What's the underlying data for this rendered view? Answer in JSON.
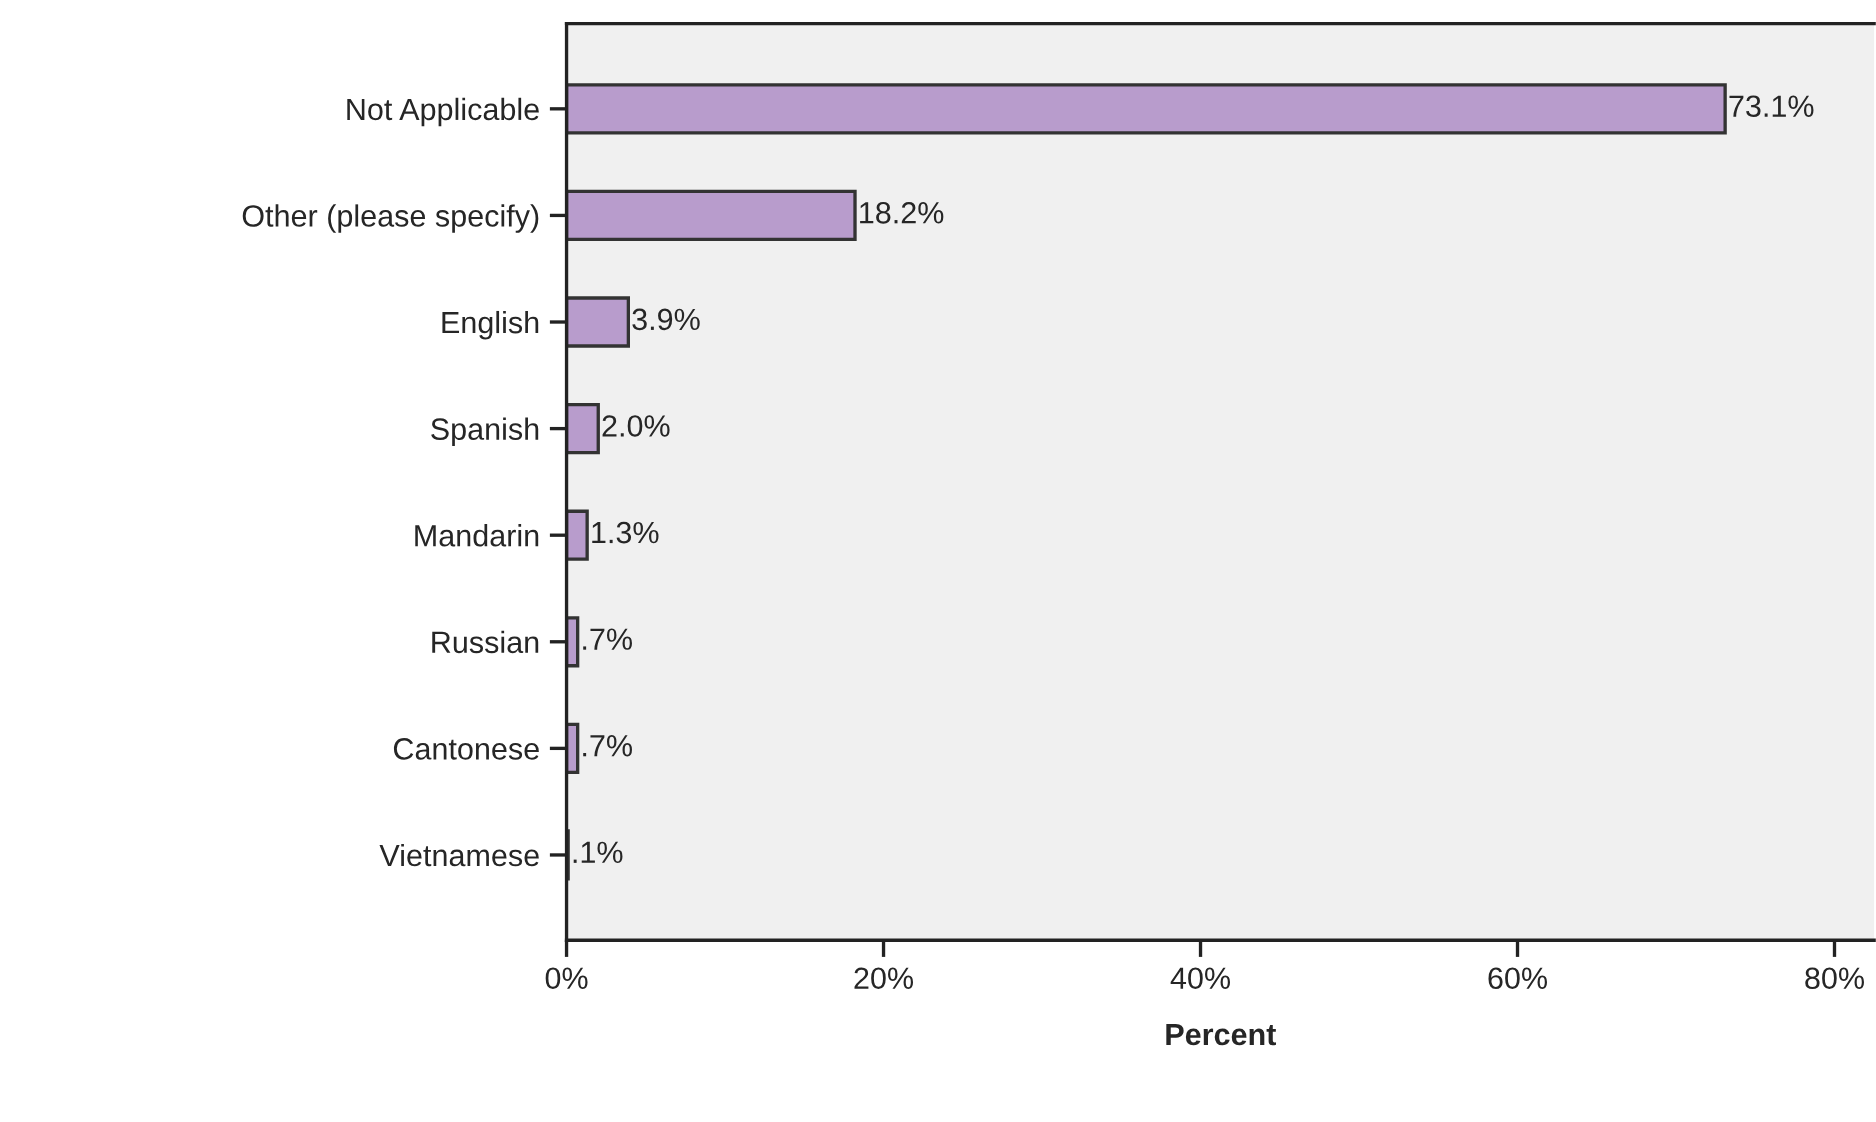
{
  "chart_data": {
    "type": "bar",
    "orientation": "horizontal",
    "xlabel": "Percent",
    "categories": [
      "Not Applicable",
      "Other (please specify)",
      "English",
      "Spanish",
      "Mandarin",
      "Russian",
      "Cantonese",
      "Vietnamese"
    ],
    "values": [
      73.1,
      18.2,
      3.9,
      2.0,
      1.3,
      0.7,
      0.7,
      0.1
    ],
    "value_labels": [
      "73.1%",
      "18.2%",
      "3.9%",
      "2.0%",
      "1.3%",
      ".7%",
      ".7%",
      ".1%"
    ],
    "color": "#b89ccc",
    "xlim": [
      0,
      82.5
    ],
    "xticks": [
      {
        "value": 0,
        "label": "0%"
      },
      {
        "value": 20,
        "label": "20%"
      },
      {
        "value": 40,
        "label": "40%"
      },
      {
        "value": 60,
        "label": "60%"
      },
      {
        "value": 80,
        "label": "80%"
      }
    ],
    "grid": false,
    "legend": false
  }
}
